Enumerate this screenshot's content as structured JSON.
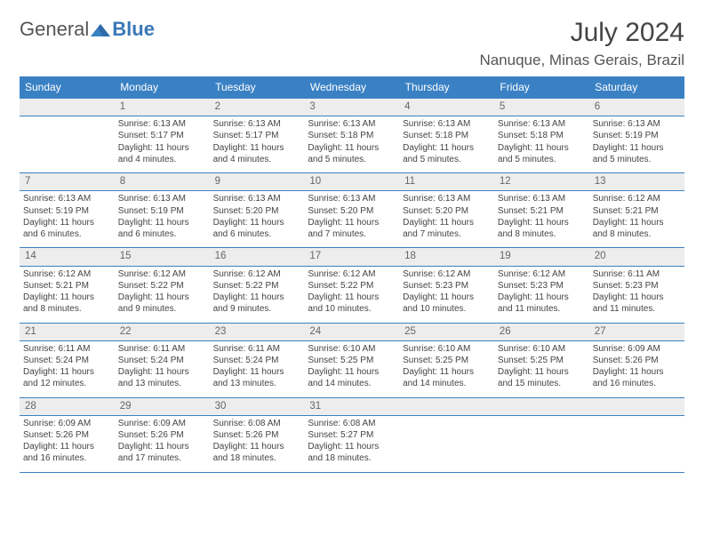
{
  "logo": {
    "general": "General",
    "blue": "Blue"
  },
  "title": {
    "month_year": "July 2024",
    "location": "Nanuque, Minas Gerais, Brazil"
  },
  "colors": {
    "header_bg": "#3a81c4",
    "header_text": "#ffffff",
    "daynum_bg": "#ededed",
    "text": "#444444"
  },
  "day_names": [
    "Sunday",
    "Monday",
    "Tuesday",
    "Wednesday",
    "Thursday",
    "Friday",
    "Saturday"
  ],
  "weeks": [
    {
      "nums": [
        "",
        "1",
        "2",
        "3",
        "4",
        "5",
        "6"
      ],
      "cells": [
        {
          "empty": true
        },
        {
          "sunrise": "6:13 AM",
          "sunset": "5:17 PM",
          "dl1": "Daylight: 11 hours",
          "dl2": "and 4 minutes."
        },
        {
          "sunrise": "6:13 AM",
          "sunset": "5:17 PM",
          "dl1": "Daylight: 11 hours",
          "dl2": "and 4 minutes."
        },
        {
          "sunrise": "6:13 AM",
          "sunset": "5:18 PM",
          "dl1": "Daylight: 11 hours",
          "dl2": "and 5 minutes."
        },
        {
          "sunrise": "6:13 AM",
          "sunset": "5:18 PM",
          "dl1": "Daylight: 11 hours",
          "dl2": "and 5 minutes."
        },
        {
          "sunrise": "6:13 AM",
          "sunset": "5:18 PM",
          "dl1": "Daylight: 11 hours",
          "dl2": "and 5 minutes."
        },
        {
          "sunrise": "6:13 AM",
          "sunset": "5:19 PM",
          "dl1": "Daylight: 11 hours",
          "dl2": "and 5 minutes."
        }
      ]
    },
    {
      "nums": [
        "7",
        "8",
        "9",
        "10",
        "11",
        "12",
        "13"
      ],
      "cells": [
        {
          "sunrise": "6:13 AM",
          "sunset": "5:19 PM",
          "dl1": "Daylight: 11 hours",
          "dl2": "and 6 minutes."
        },
        {
          "sunrise": "6:13 AM",
          "sunset": "5:19 PM",
          "dl1": "Daylight: 11 hours",
          "dl2": "and 6 minutes."
        },
        {
          "sunrise": "6:13 AM",
          "sunset": "5:20 PM",
          "dl1": "Daylight: 11 hours",
          "dl2": "and 6 minutes."
        },
        {
          "sunrise": "6:13 AM",
          "sunset": "5:20 PM",
          "dl1": "Daylight: 11 hours",
          "dl2": "and 7 minutes."
        },
        {
          "sunrise": "6:13 AM",
          "sunset": "5:20 PM",
          "dl1": "Daylight: 11 hours",
          "dl2": "and 7 minutes."
        },
        {
          "sunrise": "6:13 AM",
          "sunset": "5:21 PM",
          "dl1": "Daylight: 11 hours",
          "dl2": "and 8 minutes."
        },
        {
          "sunrise": "6:12 AM",
          "sunset": "5:21 PM",
          "dl1": "Daylight: 11 hours",
          "dl2": "and 8 minutes."
        }
      ]
    },
    {
      "nums": [
        "14",
        "15",
        "16",
        "17",
        "18",
        "19",
        "20"
      ],
      "cells": [
        {
          "sunrise": "6:12 AM",
          "sunset": "5:21 PM",
          "dl1": "Daylight: 11 hours",
          "dl2": "and 8 minutes."
        },
        {
          "sunrise": "6:12 AM",
          "sunset": "5:22 PM",
          "dl1": "Daylight: 11 hours",
          "dl2": "and 9 minutes."
        },
        {
          "sunrise": "6:12 AM",
          "sunset": "5:22 PM",
          "dl1": "Daylight: 11 hours",
          "dl2": "and 9 minutes."
        },
        {
          "sunrise": "6:12 AM",
          "sunset": "5:22 PM",
          "dl1": "Daylight: 11 hours",
          "dl2": "and 10 minutes."
        },
        {
          "sunrise": "6:12 AM",
          "sunset": "5:23 PM",
          "dl1": "Daylight: 11 hours",
          "dl2": "and 10 minutes."
        },
        {
          "sunrise": "6:12 AM",
          "sunset": "5:23 PM",
          "dl1": "Daylight: 11 hours",
          "dl2": "and 11 minutes."
        },
        {
          "sunrise": "6:11 AM",
          "sunset": "5:23 PM",
          "dl1": "Daylight: 11 hours",
          "dl2": "and 11 minutes."
        }
      ]
    },
    {
      "nums": [
        "21",
        "22",
        "23",
        "24",
        "25",
        "26",
        "27"
      ],
      "cells": [
        {
          "sunrise": "6:11 AM",
          "sunset": "5:24 PM",
          "dl1": "Daylight: 11 hours",
          "dl2": "and 12 minutes."
        },
        {
          "sunrise": "6:11 AM",
          "sunset": "5:24 PM",
          "dl1": "Daylight: 11 hours",
          "dl2": "and 13 minutes."
        },
        {
          "sunrise": "6:11 AM",
          "sunset": "5:24 PM",
          "dl1": "Daylight: 11 hours",
          "dl2": "and 13 minutes."
        },
        {
          "sunrise": "6:10 AM",
          "sunset": "5:25 PM",
          "dl1": "Daylight: 11 hours",
          "dl2": "and 14 minutes."
        },
        {
          "sunrise": "6:10 AM",
          "sunset": "5:25 PM",
          "dl1": "Daylight: 11 hours",
          "dl2": "and 14 minutes."
        },
        {
          "sunrise": "6:10 AM",
          "sunset": "5:25 PM",
          "dl1": "Daylight: 11 hours",
          "dl2": "and 15 minutes."
        },
        {
          "sunrise": "6:09 AM",
          "sunset": "5:26 PM",
          "dl1": "Daylight: 11 hours",
          "dl2": "and 16 minutes."
        }
      ]
    },
    {
      "nums": [
        "28",
        "29",
        "30",
        "31",
        "",
        "",
        ""
      ],
      "cells": [
        {
          "sunrise": "6:09 AM",
          "sunset": "5:26 PM",
          "dl1": "Daylight: 11 hours",
          "dl2": "and 16 minutes."
        },
        {
          "sunrise": "6:09 AM",
          "sunset": "5:26 PM",
          "dl1": "Daylight: 11 hours",
          "dl2": "and 17 minutes."
        },
        {
          "sunrise": "6:08 AM",
          "sunset": "5:26 PM",
          "dl1": "Daylight: 11 hours",
          "dl2": "and 18 minutes."
        },
        {
          "sunrise": "6:08 AM",
          "sunset": "5:27 PM",
          "dl1": "Daylight: 11 hours",
          "dl2": "and 18 minutes."
        },
        {
          "empty": true
        },
        {
          "empty": true
        },
        {
          "empty": true
        }
      ]
    }
  ],
  "labels": {
    "sunrise_prefix": "Sunrise: ",
    "sunset_prefix": "Sunset: "
  }
}
